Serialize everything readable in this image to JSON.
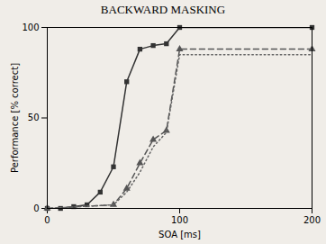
{
  "chart_data": {
    "type": "line",
    "title": "BACKWARD MASKING",
    "xlabel": "SOA [ms]",
    "ylabel": "Performance [% correct]",
    "xlim": [
      0,
      200
    ],
    "ylim": [
      0,
      100
    ],
    "xticks": [
      0,
      100,
      200
    ],
    "yticks": [
      0,
      50,
      100
    ],
    "series": [
      {
        "color": "#333333",
        "marker": "square",
        "line_style": "solid",
        "x": [
          0,
          10,
          20,
          30,
          40,
          50,
          60,
          70,
          80,
          90,
          100,
          200
        ],
        "values": [
          0,
          0,
          1,
          2,
          9,
          23,
          70,
          88,
          90,
          91,
          100,
          100
        ]
      },
      {
        "color": "#555555",
        "marker": "triangle",
        "line_style": "dashed",
        "x": [
          0,
          50,
          60,
          70,
          80,
          90,
          100,
          200
        ],
        "values": [
          0,
          2,
          11,
          25,
          38,
          43,
          88,
          88
        ]
      },
      {
        "color": "#666666",
        "line_style": "dotted",
        "x": [
          0,
          50,
          60,
          70,
          80,
          90,
          100,
          200
        ],
        "values": [
          0,
          2,
          9,
          20,
          34,
          42,
          85,
          85
        ]
      }
    ]
  }
}
